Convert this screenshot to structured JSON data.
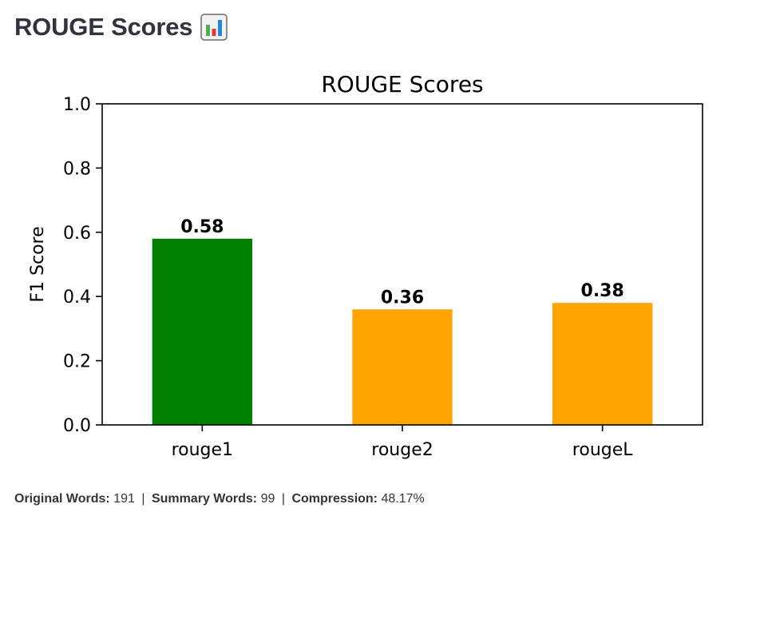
{
  "header": {
    "title": "ROUGE Scores",
    "icon": "bar-chart-icon"
  },
  "chart_data": {
    "type": "bar",
    "title": "ROUGE Scores",
    "xlabel": "",
    "ylabel": "F1 Score",
    "categories": [
      "rouge1",
      "rouge2",
      "rougeL"
    ],
    "values": [
      0.58,
      0.36,
      0.38
    ],
    "value_labels": [
      "0.58",
      "0.36",
      "0.38"
    ],
    "colors": [
      "#008000",
      "#ffa500",
      "#ffa500"
    ],
    "ylim": [
      0.0,
      1.0
    ],
    "yticks": [
      "0.0",
      "0.2",
      "0.4",
      "0.6",
      "0.8",
      "1.0"
    ],
    "grid": false,
    "legend": "none"
  },
  "stats": {
    "original_label": "Original Words:",
    "original_value": "191",
    "summary_label": "Summary Words:",
    "summary_value": "99",
    "compression_label": "Compression:",
    "compression_value": "48.17%",
    "separator": "|"
  }
}
